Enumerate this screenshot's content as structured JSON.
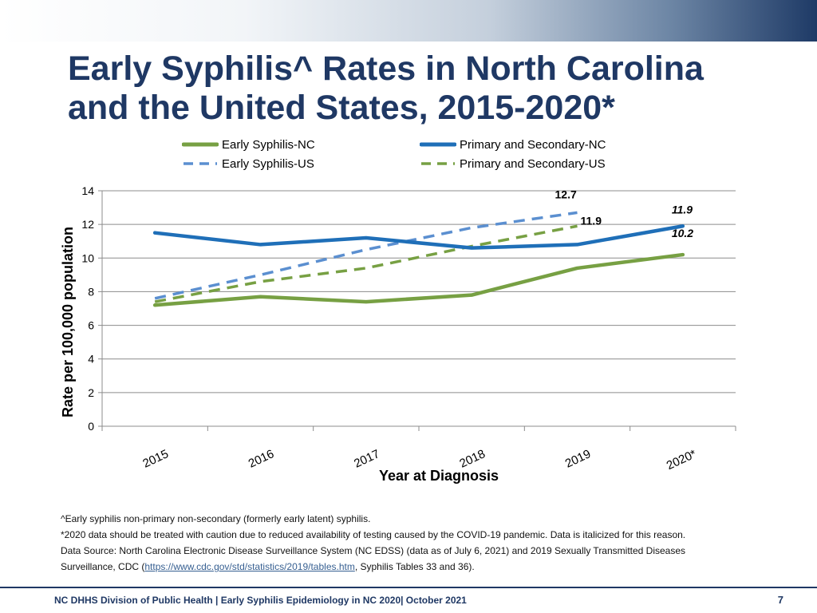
{
  "slide": {
    "title_line1": "Early Syphilis^ Rates in North Carolina",
    "title_line2": "and the United States, 2015-2020*",
    "page_number": "7",
    "footer": "NC DHHS Division of Public Health | Early Syphilis Epidemiology in NC 2020| October 2021"
  },
  "footnotes": {
    "note1": "^Early syphilis non-primary non-secondary (formerly early latent) syphilis.",
    "note2": "*2020 data should be treated with caution due to reduced availability of testing caused by the COVID-19 pandemic. Data is italicized for this reason.",
    "note3a": "Data Source: North Carolina Electronic Disease Surveillance System (NC EDSS) (data as of July 6, 2021) and 2019 Sexually Transmitted Diseases Surveillance, CDC (",
    "note3_link": "https://www.cdc.gov/std/statistics/2019/tables.htm",
    "note3b": ", Syphilis Tables 33 and 36)."
  },
  "colors": {
    "green": "#77a043",
    "blue": "#1f6fb8",
    "us_blue": "#5b8fd0",
    "title": "#1f3864"
  },
  "chart_data": {
    "type": "line",
    "categories": [
      "2015",
      "2016",
      "2017",
      "2018",
      "2019",
      "2020*"
    ],
    "xlabel": "Year at Diagnosis",
    "ylabel": "Rate per 100,000 population",
    "ylim": [
      0,
      14
    ],
    "yticks": [
      0,
      2,
      4,
      6,
      8,
      10,
      12,
      14
    ],
    "grid": true,
    "legend_position": "top",
    "series": [
      {
        "name": "Early Syphilis-NC",
        "values": [
          7.2,
          7.7,
          7.4,
          7.8,
          9.4,
          10.2
        ],
        "color": "#77a043",
        "dash": false,
        "width": 4.5,
        "id": "early-nc"
      },
      {
        "name": "Primary and Secondary-NC",
        "values": [
          11.5,
          10.8,
          11.2,
          10.6,
          10.8,
          11.9
        ],
        "color": "#1f6fb8",
        "dash": false,
        "width": 4.5,
        "id": "ps-nc"
      },
      {
        "name": "Early Syphilis-US",
        "values": [
          7.6,
          9.0,
          10.5,
          11.8,
          12.7,
          null
        ],
        "color": "#5b8fd0",
        "dash": true,
        "width": 3.5,
        "id": "early-us"
      },
      {
        "name": "Primary and Secondary-US",
        "values": [
          7.4,
          8.6,
          9.4,
          10.7,
          11.9,
          null
        ],
        "color": "#77a043",
        "dash": true,
        "width": 3.5,
        "id": "ps-us"
      }
    ],
    "annotations": [
      {
        "text": "12.7",
        "series": "early-us",
        "index": 4,
        "italic": false
      },
      {
        "text": "11.9",
        "series": "ps-us",
        "index": 4,
        "italic": false
      },
      {
        "text": "11.9",
        "series": "ps-nc",
        "index": 5,
        "italic": true
      },
      {
        "text": "10.2",
        "series": "early-nc",
        "index": 5,
        "italic": true
      }
    ]
  }
}
